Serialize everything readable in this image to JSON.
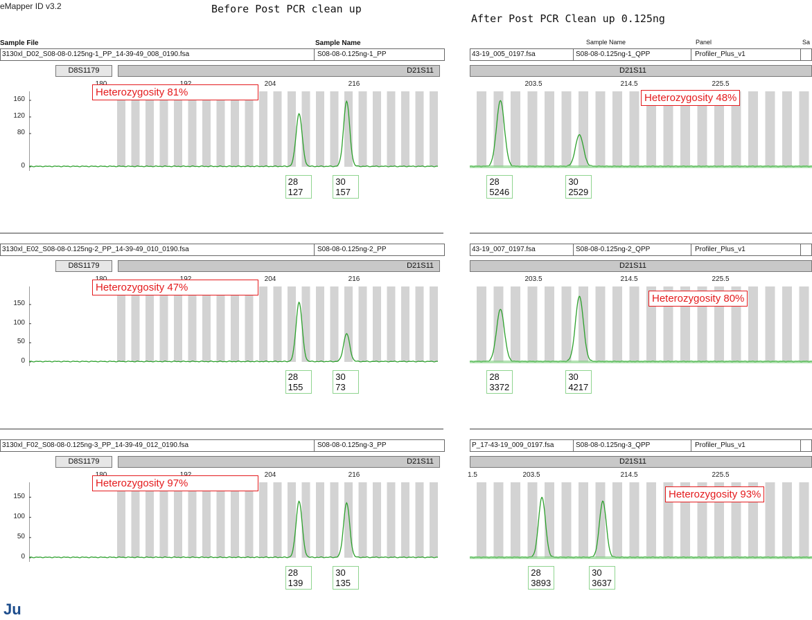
{
  "app_title": "eMapper ID v3.2",
  "title_before": "Before Post PCR clean up",
  "title_after": "After Post PCR Clean up 0.125ng",
  "left_header": {
    "sample_file_label": "Sample File",
    "sample_name_label": "Sample Name"
  },
  "right_header": {
    "sample_name_label": "Sample Name",
    "panel_label": "Panel",
    "extra_label": "Sa"
  },
  "bottom_text": "Ju",
  "chart_data": [
    {
      "type": "line",
      "panel": "before",
      "sample_file": "3130xl_D02_S08-08-0.125ng-1_PP_14-39-49_008_0190.fsa",
      "sample_name": "S08-08-0.125ng-1_PP",
      "marker_left": "D8S1179",
      "marker_right": "D21S11",
      "x_ticks": [
        "180",
        "192",
        "204",
        "216"
      ],
      "y_ticks": [
        "160",
        "120",
        "80",
        "0"
      ],
      "ylim": [
        0,
        175
      ],
      "xlim": [
        175,
        218
      ],
      "heterozygosity": "Heterozygosity 81%",
      "peaks": [
        {
          "x": 203.4,
          "height": 127,
          "allele": "28",
          "label_height": "127"
        },
        {
          "x": 208.4,
          "height": 157,
          "allele": "30",
          "label_height": "157"
        }
      ]
    },
    {
      "type": "line",
      "panel": "before",
      "sample_file": "3130xl_E02_S08-08-0.125ng-2_PP_14-39-49_010_0190.fsa",
      "sample_name": "S08-08-0.125ng-2_PP",
      "marker_left": "D8S1179",
      "marker_right": "D21S11",
      "x_ticks": [
        "180",
        "192",
        "204",
        "216"
      ],
      "y_ticks": [
        "150",
        "100",
        "50",
        "0"
      ],
      "ylim": [
        0,
        190
      ],
      "xlim": [
        175,
        218
      ],
      "heterozygosity": "Heterozygosity 47%",
      "peaks": [
        {
          "x": 203.4,
          "height": 155,
          "allele": "28",
          "label_height": "155"
        },
        {
          "x": 208.4,
          "height": 73,
          "allele": "30",
          "label_height": "73"
        }
      ]
    },
    {
      "type": "line",
      "panel": "before",
      "sample_file": "3130xl_F02_S08-08-0.125ng-3_PP_14-39-49_012_0190.fsa",
      "sample_name": "S08-08-0.125ng-3_PP",
      "marker_left": "D8S1179",
      "marker_right": "D21S11",
      "x_ticks": [
        "180",
        "192",
        "204",
        "216"
      ],
      "y_ticks": [
        "150",
        "100",
        "50",
        "0"
      ],
      "ylim": [
        0,
        180
      ],
      "xlim": [
        175,
        218
      ],
      "heterozygosity": "Heterozygosity 97%",
      "peaks": [
        {
          "x": 203.4,
          "height": 139,
          "allele": "28",
          "label_height": "139"
        },
        {
          "x": 208.4,
          "height": 135,
          "allele": "30",
          "label_height": "135"
        }
      ]
    },
    {
      "type": "line",
      "panel": "after",
      "sample_file": "43-19_005_0197.fsa",
      "sample_name": "S08-08-0.125ng-1_QPP",
      "panel_name": "Profiler_Plus_v1",
      "marker_right": "D21S11",
      "x_ticks": [
        "203.5",
        "214.5",
        "225.5"
      ],
      "ylim": [
        0,
        5800
      ],
      "xlim": [
        196,
        235
      ],
      "heterozygosity": "Heterozygosity 48%",
      "peaks": [
        {
          "x": 199.5,
          "height": 5246,
          "allele": "28",
          "label_height": "5246"
        },
        {
          "x": 208.5,
          "height": 2529,
          "allele": "30",
          "label_height": "2529"
        }
      ]
    },
    {
      "type": "line",
      "panel": "after",
      "sample_file": "43-19_007_0197.fsa",
      "sample_name": "S08-08-0.125ng-2_QPP",
      "panel_name": "Profiler_Plus_v1",
      "marker_right": "D21S11",
      "x_ticks": [
        "203.5",
        "214.5",
        "225.5"
      ],
      "ylim": [
        0,
        4700
      ],
      "xlim": [
        196,
        235
      ],
      "heterozygosity": "Heterozygosity 80%",
      "peaks": [
        {
          "x": 199.5,
          "height": 3372,
          "allele": "28",
          "label_height": "3372"
        },
        {
          "x": 208.5,
          "height": 4217,
          "allele": "30",
          "label_height": "4217"
        }
      ]
    },
    {
      "type": "line",
      "panel": "after",
      "sample_file": "P_17-43-19_009_0197.fsa",
      "sample_name": "S08-08-0.125ng-3_QPP",
      "panel_name": "Profiler_Plus_v1",
      "marker_right": "D21S11",
      "x_ticks": [
        "1.5",
        "203.5",
        "214.5",
        "225.5"
      ],
      "ylim": [
        0,
        4700
      ],
      "xlim": [
        190,
        235
      ],
      "heterozygosity": "Heterozygosity 93%",
      "peaks": [
        {
          "x": 199.5,
          "height": 3893,
          "allele": "28",
          "label_height": "3893"
        },
        {
          "x": 207.5,
          "height": 3637,
          "allele": "30",
          "label_height": "3637"
        }
      ]
    }
  ]
}
